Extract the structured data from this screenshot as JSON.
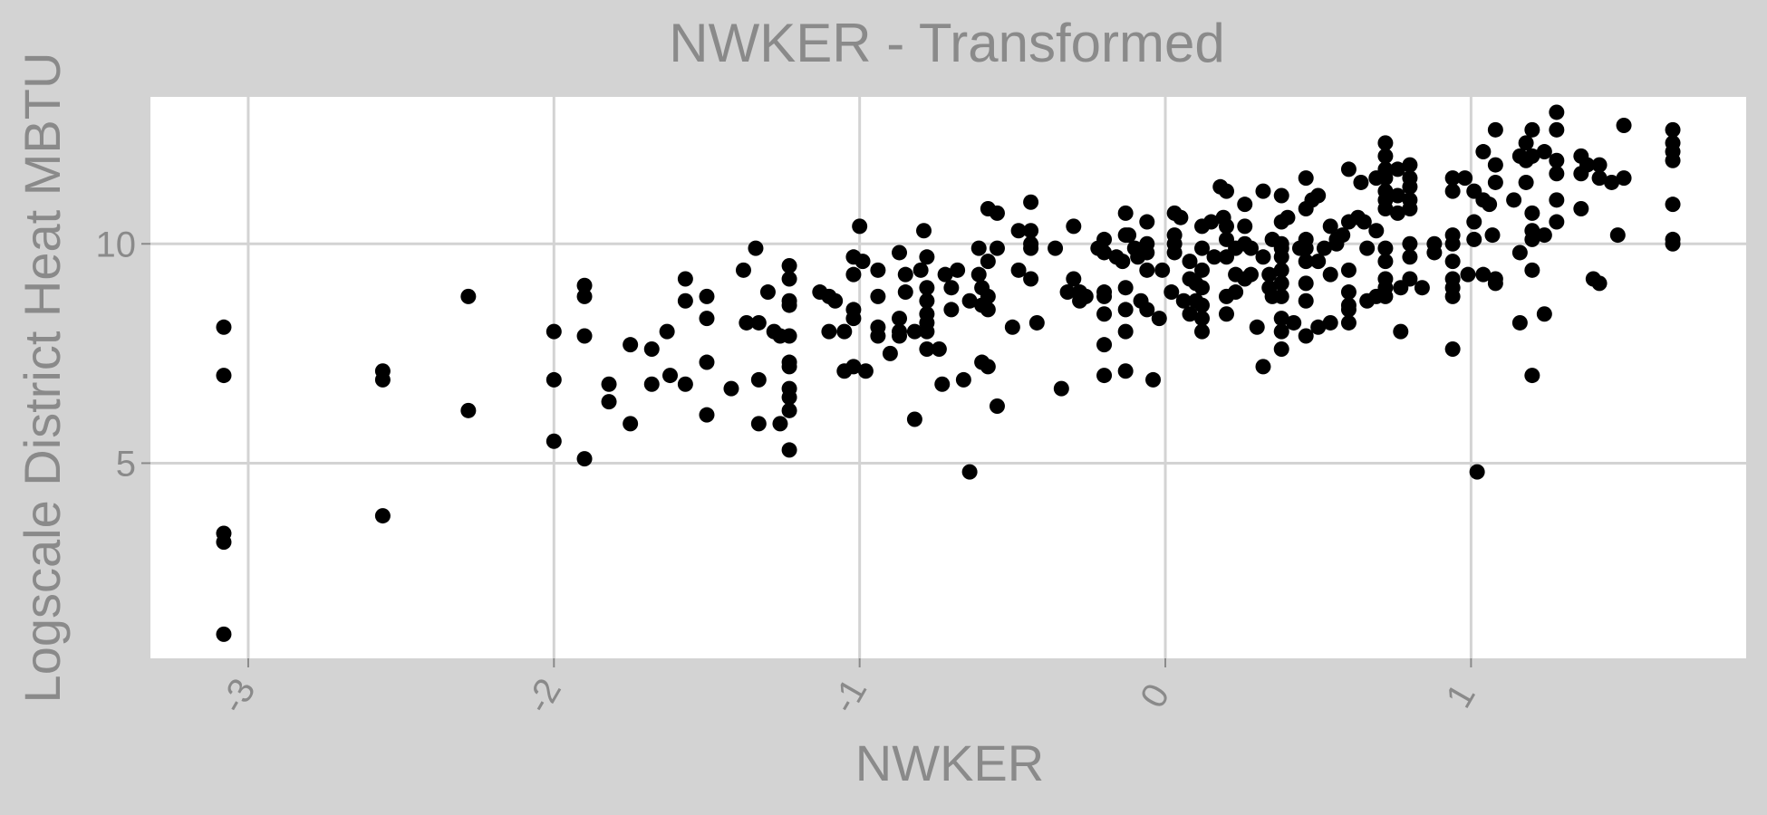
{
  "chart_data": {
    "type": "scatter",
    "title": "NWKER - Transformed",
    "xlabel": "NWKER",
    "ylabel": "Logscale District Heat MBTU",
    "xlim": [
      -3.32,
      1.9
    ],
    "ylim": [
      0.55,
      13.35
    ],
    "x_ticks": [
      -3,
      -2,
      -1,
      0,
      1
    ],
    "y_ticks": [
      5,
      10
    ],
    "grid": true,
    "colors": {
      "outer_bg": "#d3d3d3",
      "panel_bg": "#ffffff",
      "grid": "#d3d3d3",
      "point": "#000000",
      "text": "#8a8a8a"
    },
    "points": [
      [
        -3.08,
        8.1
      ],
      [
        -3.08,
        7.0
      ],
      [
        -3.08,
        3.4
      ],
      [
        -3.08,
        3.2
      ],
      [
        -3.08,
        1.1
      ],
      [
        -2.56,
        7.1
      ],
      [
        -2.56,
        6.9
      ],
      [
        -2.56,
        3.8
      ],
      [
        -2.28,
        8.8
      ],
      [
        -2.28,
        6.2
      ],
      [
        -2.0,
        8.0
      ],
      [
        -2.0,
        6.9
      ],
      [
        -2.0,
        5.5
      ],
      [
        -1.9,
        9.05
      ],
      [
        -1.9,
        8.8
      ],
      [
        -1.9,
        7.9
      ],
      [
        -1.9,
        5.1
      ],
      [
        -1.82,
        6.8
      ],
      [
        -1.82,
        6.4
      ],
      [
        -1.75,
        7.7
      ],
      [
        -1.75,
        5.9
      ],
      [
        -1.68,
        7.6
      ],
      [
        -1.68,
        6.8
      ],
      [
        -1.63,
        8.0
      ],
      [
        -1.62,
        7.0
      ],
      [
        -1.57,
        9.2
      ],
      [
        -1.57,
        8.7
      ],
      [
        -1.57,
        6.8
      ],
      [
        -1.5,
        8.8
      ],
      [
        -1.5,
        8.3
      ],
      [
        -1.5,
        7.3
      ],
      [
        -1.5,
        6.1
      ],
      [
        -1.42,
        6.7
      ],
      [
        -1.38,
        9.4
      ],
      [
        -1.37,
        8.2
      ],
      [
        -1.34,
        9.9
      ],
      [
        -1.33,
        8.2
      ],
      [
        -1.33,
        6.9
      ],
      [
        -1.33,
        5.9
      ],
      [
        -1.3,
        8.9
      ],
      [
        -1.28,
        8.0
      ],
      [
        -1.26,
        7.9
      ],
      [
        -1.26,
        5.9
      ],
      [
        -1.23,
        9.5
      ],
      [
        -1.23,
        9.2
      ],
      [
        -1.23,
        8.7
      ],
      [
        -1.23,
        8.6
      ],
      [
        -1.23,
        7.9
      ],
      [
        -1.23,
        7.3
      ],
      [
        -1.23,
        7.2
      ],
      [
        -1.23,
        6.7
      ],
      [
        -1.23,
        6.5
      ],
      [
        -1.23,
        6.2
      ],
      [
        -1.23,
        5.3
      ],
      [
        -1.13,
        8.9
      ],
      [
        -1.1,
        8.8
      ],
      [
        -1.1,
        8.0
      ],
      [
        -1.08,
        8.7
      ],
      [
        -1.05,
        8.0
      ],
      [
        -1.05,
        7.1
      ],
      [
        -1.02,
        9.7
      ],
      [
        -1.02,
        9.3
      ],
      [
        -1.02,
        8.5
      ],
      [
        -1.02,
        8.3
      ],
      [
        -1.02,
        7.2
      ],
      [
        -1.0,
        10.4
      ],
      [
        -0.99,
        9.6
      ],
      [
        -0.98,
        7.1
      ],
      [
        -0.94,
        9.4
      ],
      [
        -0.94,
        8.8
      ],
      [
        -0.94,
        8.1
      ],
      [
        -0.94,
        7.9
      ],
      [
        -0.9,
        7.5
      ],
      [
        -0.87,
        9.8
      ],
      [
        -0.87,
        8.3
      ],
      [
        -0.87,
        8.0
      ],
      [
        -0.87,
        7.9
      ],
      [
        -0.85,
        9.3
      ],
      [
        -0.85,
        8.9
      ],
      [
        -0.82,
        8.0
      ],
      [
        -0.82,
        6.0
      ],
      [
        -0.8,
        9.4
      ],
      [
        -0.79,
        10.3
      ],
      [
        -0.78,
        9.7
      ],
      [
        -0.78,
        9.0
      ],
      [
        -0.78,
        8.7
      ],
      [
        -0.78,
        8.4
      ],
      [
        -0.78,
        8.2
      ],
      [
        -0.78,
        8.0
      ],
      [
        -0.78,
        7.6
      ],
      [
        -0.74,
        7.6
      ],
      [
        -0.73,
        6.8
      ],
      [
        -0.72,
        9.3
      ],
      [
        -0.7,
        9.0
      ],
      [
        -0.7,
        8.5
      ],
      [
        -0.68,
        9.4
      ],
      [
        -0.66,
        6.9
      ],
      [
        -0.64,
        8.7
      ],
      [
        -0.64,
        4.8
      ],
      [
        -0.61,
        9.9
      ],
      [
        -0.61,
        9.3
      ],
      [
        -0.6,
        9.0
      ],
      [
        -0.6,
        8.6
      ],
      [
        -0.6,
        7.3
      ],
      [
        -0.58,
        10.8
      ],
      [
        -0.58,
        9.6
      ],
      [
        -0.58,
        8.8
      ],
      [
        -0.58,
        8.5
      ],
      [
        -0.58,
        7.2
      ],
      [
        -0.55,
        10.7
      ],
      [
        -0.55,
        9.9
      ],
      [
        -0.55,
        6.3
      ],
      [
        -0.5,
        8.1
      ],
      [
        -0.48,
        10.3
      ],
      [
        -0.48,
        9.4
      ],
      [
        -0.44,
        10.95
      ],
      [
        -0.44,
        10.3
      ],
      [
        -0.44,
        10.0
      ],
      [
        -0.44,
        9.9
      ],
      [
        -0.44,
        9.2
      ],
      [
        -0.42,
        8.2
      ],
      [
        -0.36,
        9.9
      ],
      [
        -0.34,
        6.7
      ],
      [
        -0.32,
        8.9
      ],
      [
        -0.3,
        10.4
      ],
      [
        -0.3,
        9.2
      ],
      [
        -0.28,
        8.9
      ],
      [
        -0.28,
        8.7
      ],
      [
        -0.26,
        8.8
      ],
      [
        -0.22,
        9.9
      ],
      [
        -0.2,
        10.1
      ],
      [
        -0.2,
        9.8
      ],
      [
        -0.2,
        8.9
      ],
      [
        -0.2,
        8.8
      ],
      [
        -0.2,
        8.4
      ],
      [
        -0.2,
        7.7
      ],
      [
        -0.2,
        7.0
      ],
      [
        -0.16,
        9.7
      ],
      [
        -0.14,
        9.6
      ],
      [
        -0.13,
        10.7
      ],
      [
        -0.13,
        10.2
      ],
      [
        -0.13,
        9.0
      ],
      [
        -0.13,
        8.5
      ],
      [
        -0.13,
        8.0
      ],
      [
        -0.13,
        7.1
      ],
      [
        -0.12,
        10.2
      ],
      [
        -0.1,
        9.9
      ],
      [
        -0.09,
        9.7
      ],
      [
        -0.08,
        8.7
      ],
      [
        -0.06,
        10.5
      ],
      [
        -0.06,
        10.0
      ],
      [
        -0.06,
        9.8
      ],
      [
        -0.06,
        9.4
      ],
      [
        -0.06,
        8.5
      ],
      [
        -0.04,
        6.9
      ],
      [
        -0.02,
        8.3
      ],
      [
        -0.01,
        9.4
      ],
      [
        0.02,
        8.9
      ],
      [
        0.03,
        10.7
      ],
      [
        0.03,
        10.2
      ],
      [
        0.03,
        10.0
      ],
      [
        0.03,
        9.8
      ],
      [
        0.05,
        10.6
      ],
      [
        0.06,
        8.7
      ],
      [
        0.08,
        9.6
      ],
      [
        0.08,
        9.2
      ],
      [
        0.08,
        8.4
      ],
      [
        0.1,
        9.1
      ],
      [
        0.1,
        8.7
      ],
      [
        0.12,
        10.4
      ],
      [
        0.12,
        9.9
      ],
      [
        0.12,
        9.4
      ],
      [
        0.12,
        9.0
      ],
      [
        0.12,
        8.6
      ],
      [
        0.12,
        8.3
      ],
      [
        0.12,
        8.0
      ],
      [
        0.15,
        10.5
      ],
      [
        0.16,
        9.7
      ],
      [
        0.18,
        11.3
      ],
      [
        0.19,
        10.6
      ],
      [
        0.2,
        11.2
      ],
      [
        0.2,
        10.4
      ],
      [
        0.2,
        10.1
      ],
      [
        0.2,
        9.7
      ],
      [
        0.2,
        8.8
      ],
      [
        0.2,
        8.4
      ],
      [
        0.23,
        9.9
      ],
      [
        0.23,
        9.3
      ],
      [
        0.23,
        8.9
      ],
      [
        0.26,
        10.9
      ],
      [
        0.26,
        10.4
      ],
      [
        0.26,
        10.0
      ],
      [
        0.26,
        9.2
      ],
      [
        0.28,
        9.9
      ],
      [
        0.28,
        9.3
      ],
      [
        0.3,
        8.1
      ],
      [
        0.32,
        11.2
      ],
      [
        0.32,
        9.7
      ],
      [
        0.32,
        7.2
      ],
      [
        0.34,
        9.3
      ],
      [
        0.34,
        9.0
      ],
      [
        0.35,
        10.1
      ],
      [
        0.35,
        8.8
      ],
      [
        0.38,
        11.1
      ],
      [
        0.38,
        10.5
      ],
      [
        0.38,
        10.0
      ],
      [
        0.38,
        9.9
      ],
      [
        0.38,
        9.7
      ],
      [
        0.38,
        9.4
      ],
      [
        0.38,
        9.1
      ],
      [
        0.38,
        8.8
      ],
      [
        0.38,
        8.3
      ],
      [
        0.38,
        8.0
      ],
      [
        0.38,
        7.6
      ],
      [
        0.4,
        10.6
      ],
      [
        0.42,
        8.2
      ],
      [
        0.44,
        9.9
      ],
      [
        0.46,
        11.5
      ],
      [
        0.46,
        10.8
      ],
      [
        0.46,
        10.1
      ],
      [
        0.46,
        9.9
      ],
      [
        0.46,
        9.6
      ],
      [
        0.46,
        9.1
      ],
      [
        0.46,
        8.7
      ],
      [
        0.46,
        7.9
      ],
      [
        0.48,
        11.0
      ],
      [
        0.5,
        11.1
      ],
      [
        0.5,
        9.6
      ],
      [
        0.5,
        8.1
      ],
      [
        0.52,
        9.9
      ],
      [
        0.54,
        10.4
      ],
      [
        0.54,
        9.3
      ],
      [
        0.54,
        8.2
      ],
      [
        0.56,
        10.1
      ],
      [
        0.56,
        10.0
      ],
      [
        0.58,
        10.2
      ],
      [
        0.6,
        11.7
      ],
      [
        0.6,
        10.5
      ],
      [
        0.6,
        9.4
      ],
      [
        0.6,
        8.9
      ],
      [
        0.6,
        8.6
      ],
      [
        0.6,
        8.5
      ],
      [
        0.6,
        8.2
      ],
      [
        0.63,
        10.6
      ],
      [
        0.64,
        11.4
      ],
      [
        0.65,
        10.5
      ],
      [
        0.66,
        9.9
      ],
      [
        0.66,
        8.7
      ],
      [
        0.69,
        11.5
      ],
      [
        0.69,
        10.3
      ],
      [
        0.69,
        8.8
      ],
      [
        0.72,
        12.3
      ],
      [
        0.72,
        12.0
      ],
      [
        0.72,
        11.7
      ],
      [
        0.72,
        11.5
      ],
      [
        0.72,
        11.2
      ],
      [
        0.72,
        11.0
      ],
      [
        0.72,
        10.8
      ],
      [
        0.72,
        9.9
      ],
      [
        0.72,
        9.6
      ],
      [
        0.72,
        9.2
      ],
      [
        0.72,
        9.0
      ],
      [
        0.72,
        8.8
      ],
      [
        0.76,
        11.7
      ],
      [
        0.76,
        11.1
      ],
      [
        0.76,
        10.7
      ],
      [
        0.77,
        8.0
      ],
      [
        0.77,
        9.0
      ],
      [
        0.8,
        11.8
      ],
      [
        0.8,
        11.5
      ],
      [
        0.8,
        11.3
      ],
      [
        0.8,
        11.0
      ],
      [
        0.8,
        10.8
      ],
      [
        0.8,
        10.0
      ],
      [
        0.8,
        9.7
      ],
      [
        0.8,
        9.2
      ],
      [
        0.84,
        9.0
      ],
      [
        0.88,
        10.0
      ],
      [
        0.88,
        9.8
      ],
      [
        0.94,
        11.5
      ],
      [
        0.94,
        11.2
      ],
      [
        0.94,
        10.2
      ],
      [
        0.94,
        10.0
      ],
      [
        0.94,
        9.6
      ],
      [
        0.94,
        9.2
      ],
      [
        0.94,
        9.0
      ],
      [
        0.94,
        8.8
      ],
      [
        0.94,
        7.6
      ],
      [
        0.98,
        11.5
      ],
      [
        0.99,
        9.3
      ],
      [
        1.01,
        11.2
      ],
      [
        1.01,
        10.5
      ],
      [
        1.01,
        10.1
      ],
      [
        1.02,
        4.8
      ],
      [
        1.04,
        12.1
      ],
      [
        1.04,
        11.0
      ],
      [
        1.04,
        9.3
      ],
      [
        1.06,
        10.9
      ],
      [
        1.07,
        10.2
      ],
      [
        1.08,
        12.6
      ],
      [
        1.08,
        11.8
      ],
      [
        1.08,
        11.4
      ],
      [
        1.08,
        9.2
      ],
      [
        1.08,
        9.1
      ],
      [
        1.14,
        11.0
      ],
      [
        1.16,
        12.0
      ],
      [
        1.16,
        9.8
      ],
      [
        1.16,
        8.2
      ],
      [
        1.18,
        12.3
      ],
      [
        1.18,
        11.9
      ],
      [
        1.18,
        11.4
      ],
      [
        1.2,
        12.6
      ],
      [
        1.2,
        12.0
      ],
      [
        1.2,
        10.7
      ],
      [
        1.2,
        10.3
      ],
      [
        1.2,
        10.1
      ],
      [
        1.2,
        9.4
      ],
      [
        1.2,
        7.0
      ],
      [
        1.24,
        12.1
      ],
      [
        1.24,
        10.2
      ],
      [
        1.24,
        8.4
      ],
      [
        1.28,
        13.0
      ],
      [
        1.28,
        12.6
      ],
      [
        1.28,
        11.9
      ],
      [
        1.28,
        11.6
      ],
      [
        1.28,
        11.0
      ],
      [
        1.28,
        10.5
      ],
      [
        1.36,
        12.0
      ],
      [
        1.36,
        11.6
      ],
      [
        1.36,
        10.8
      ],
      [
        1.38,
        11.8
      ],
      [
        1.4,
        9.2
      ],
      [
        1.42,
        11.8
      ],
      [
        1.42,
        11.5
      ],
      [
        1.42,
        9.1
      ],
      [
        1.46,
        11.4
      ],
      [
        1.48,
        10.2
      ],
      [
        1.5,
        12.7
      ],
      [
        1.5,
        11.5
      ],
      [
        1.66,
        12.6
      ],
      [
        1.66,
        12.3
      ],
      [
        1.66,
        12.1
      ],
      [
        1.66,
        11.9
      ],
      [
        1.66,
        10.9
      ],
      [
        1.66,
        10.1
      ],
      [
        1.66,
        10.0
      ]
    ]
  }
}
